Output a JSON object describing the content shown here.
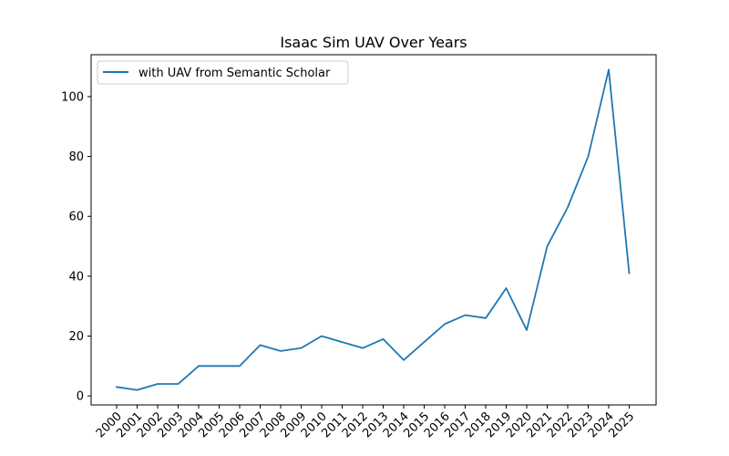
{
  "chart_data": {
    "type": "line",
    "title": "Isaac Sim UAV Over Years",
    "xlabel": "",
    "ylabel": "",
    "categories": [
      "2000",
      "2001",
      "2002",
      "2003",
      "2004",
      "2005",
      "2006",
      "2007",
      "2008",
      "2009",
      "2010",
      "2011",
      "2012",
      "2013",
      "2014",
      "2015",
      "2016",
      "2017",
      "2018",
      "2019",
      "2020",
      "2021",
      "2022",
      "2023",
      "2024",
      "2025"
    ],
    "series": [
      {
        "name": "with UAV from Semantic Scholar",
        "color": "#1f77b4",
        "values": [
          3,
          2,
          4,
          4,
          10,
          10,
          10,
          17,
          15,
          16,
          20,
          18,
          16,
          19,
          12,
          18,
          24,
          27,
          26,
          36,
          22,
          50,
          63,
          80,
          109,
          41
        ]
      }
    ],
    "ylim": [
      -3,
      114
    ],
    "yticks": [
      0,
      20,
      40,
      60,
      80,
      100
    ],
    "grid": false,
    "legend_position": "upper-left"
  }
}
